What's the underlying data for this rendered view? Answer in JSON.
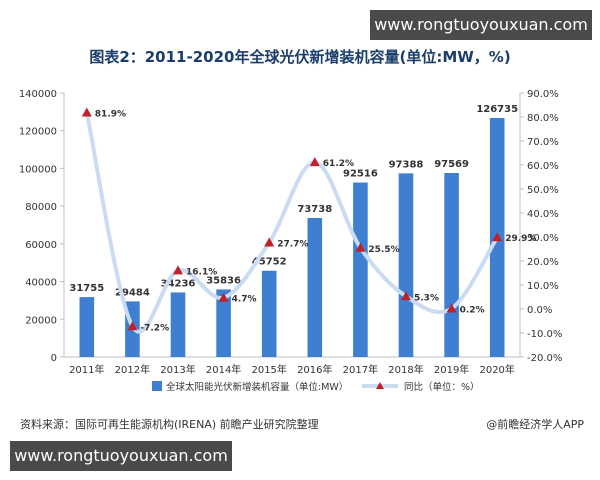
{
  "watermark": {
    "top": "www.rongtuoyouxuan.com",
    "bottom": "www.rongtuoyouxuan.com"
  },
  "footer": {
    "source": "资料来源：国际可再生能源机构(IRENA) 前瞻产业研究院整理",
    "brand": "@前瞻经济学人APP"
  },
  "chart_data": {
    "type": "bar",
    "title": "图表2：2011-2020年全球光伏新增装机容量(单位:MW，%)",
    "categories": [
      "2011年",
      "2012年",
      "2013年",
      "2014年",
      "2015年",
      "2016年",
      "2017年",
      "2018年",
      "2019年",
      "2020年"
    ],
    "series": [
      {
        "name": "全球太阳能光伏新增装机容量（单位:MW）",
        "type": "bar",
        "axis": "left",
        "values": [
          31755,
          29484,
          34236,
          35836,
          45752,
          73738,
          92516,
          97388,
          97569,
          126735
        ],
        "labels": [
          "31755",
          "29484",
          "34236",
          "35836",
          "45752",
          "73738",
          "92516",
          "97388",
          "97569",
          "126735"
        ]
      },
      {
        "name": "同比（单位：%）",
        "type": "line",
        "axis": "right",
        "values": [
          81.9,
          -7.2,
          16.1,
          4.7,
          27.7,
          61.2,
          25.5,
          5.3,
          0.2,
          29.9
        ],
        "labels": [
          "81.9%",
          "-7.2%",
          "16.1%",
          "4.7%",
          "27.7%",
          "61.2%",
          "25.5%",
          "5.3%",
          "0.2%",
          "29.9%"
        ]
      }
    ],
    "y_left": {
      "min": 0,
      "max": 140000,
      "ticks": [
        "0",
        "20000",
        "40000",
        "60000",
        "80000",
        "100000",
        "120000",
        "140000"
      ]
    },
    "y_right": {
      "min": -20,
      "max": 90,
      "ticks": [
        "-20.0%",
        "-10.0%",
        "0.0%",
        "10.0%",
        "20.0%",
        "30.0%",
        "40.0%",
        "50.0%",
        "60.0%",
        "70.0%",
        "80.0%",
        "90.0%"
      ]
    },
    "colors": {
      "bar": "#3f7fd1",
      "line": "#c9dcf2",
      "marker": "#c0202a",
      "axis": "#bfbfbf"
    },
    "legend_position": "bottom"
  }
}
